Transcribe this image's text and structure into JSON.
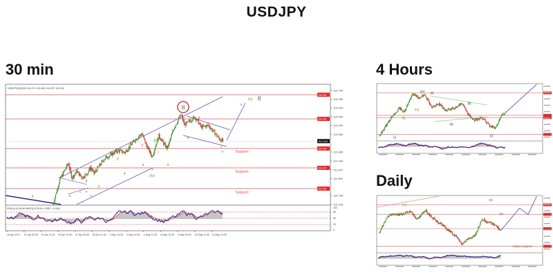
{
  "page": {
    "title": "USDJPY",
    "sections": {
      "m30": "30 min",
      "h4": "4 Hours",
      "daily": "Daily"
    }
  },
  "colors": {
    "up": "#3a9a2e",
    "down": "#c8302a",
    "level": "#d9534f",
    "channel": "#7a7acb",
    "rsi": "#1d1d9a",
    "signal": "#d9534f",
    "macd": "#b8b8b8",
    "support_text": "#d9534f",
    "green_label": "#4f9a2f"
  },
  "chart_data": [
    {
      "type": "candlestick",
      "title": "30 min",
      "header": "USDJPY(B),M30 113.271 113.362 113.257 113.342",
      "y_ticks": [
        "115.753",
        "115.340",
        "114.925",
        "114.505",
        "114.090",
        "113.660",
        "112.830",
        "112.400",
        "111.975",
        "111.560",
        "110.745",
        "110.325"
      ],
      "level_labels": [
        "115.55",
        "114.40",
        "112.99",
        "112.07",
        "111.08"
      ],
      "current_price": "113.342",
      "ylim": [
        110.325,
        115.753
      ],
      "x_ticks": [
        "19 Apr 2017",
        "21 Apr 03:30",
        "24 Apr 11:30",
        "25 Apr 19:30",
        "27 Apr 03:30",
        "28 Apr 11:30",
        "1 May 19:30",
        "3 May 03:30",
        "4 May 11:30",
        "5 May 19:30",
        "9 May 03:30",
        "10 May 11:30",
        "11 May 19:30"
      ],
      "price_path": [
        [
          27,
          110.33
        ],
        [
          31,
          111.5
        ],
        [
          36,
          112.3
        ],
        [
          38,
          111.6
        ],
        [
          41,
          111.9
        ],
        [
          44,
          111.6
        ],
        [
          47,
          111.8
        ],
        [
          49,
          112.1
        ],
        [
          51,
          111.8
        ],
        [
          57,
          112.5
        ],
        [
          61,
          112.7
        ],
        [
          65,
          112.9
        ],
        [
          69,
          112.8
        ],
        [
          75,
          113.4
        ],
        [
          79,
          113.7
        ],
        [
          82,
          113.1
        ],
        [
          85,
          112.6
        ],
        [
          89,
          113.6
        ],
        [
          92,
          113.2
        ],
        [
          94,
          113.0
        ],
        [
          98,
          114.0
        ],
        [
          102,
          114.6
        ],
        [
          104,
          114.1
        ],
        [
          110,
          114.5
        ],
        [
          114,
          114.0
        ],
        [
          118,
          114.1
        ],
        [
          122,
          113.7
        ],
        [
          125,
          113.4
        ],
        [
          127,
          113.34
        ]
      ],
      "support_labels": [
        "Support",
        "Support",
        "Support"
      ],
      "indicator_header": "RSI(14) 42.6145  MACD(12,26,9) -0.0907 -0.1044",
      "indicator_ticks": [
        "100",
        "80",
        "50",
        "20",
        "0"
      ],
      "wave_labels": [
        "3",
        "iii",
        "5",
        "b",
        "d",
        "a",
        "c",
        "e",
        "iv",
        "1",
        "2",
        "3",
        "4",
        "5",
        "v",
        "(iii)",
        "a",
        "c",
        "(iv)",
        "i",
        "ii",
        "[i]",
        "iii",
        "b",
        "a",
        "c",
        "iv",
        "v",
        "(v)",
        "[i]"
      ]
    },
    {
      "type": "candlestick",
      "title": "4 Hours",
      "price_path": [
        [
          0,
          0.02
        ],
        [
          8,
          0.45
        ],
        [
          12,
          0.6
        ],
        [
          15,
          0.52
        ],
        [
          20,
          0.9
        ],
        [
          24,
          0.82
        ],
        [
          27,
          0.88
        ],
        [
          32,
          0.62
        ],
        [
          36,
          0.7
        ],
        [
          40,
          0.55
        ],
        [
          45,
          0.6
        ],
        [
          50,
          0.7
        ],
        [
          53,
          0.5
        ],
        [
          57,
          0.35
        ],
        [
          62,
          0.4
        ],
        [
          66,
          0.25
        ],
        [
          70,
          0.18
        ],
        [
          74,
          0.45
        ],
        [
          76,
          0.5
        ]
      ],
      "projection": [
        [
          76,
          0.5
        ],
        [
          95,
          1.1
        ]
      ],
      "wave_labels": [
        "[i]",
        "[ii]",
        "[iii]",
        "[iv]",
        "[v]",
        "[a]",
        "[b]",
        "[c]"
      ]
    },
    {
      "type": "candlestick",
      "title": "Daily",
      "price_path": [
        [
          0,
          0.35
        ],
        [
          5,
          0.7
        ],
        [
          12,
          0.72
        ],
        [
          18,
          0.78
        ],
        [
          22,
          0.62
        ],
        [
          27,
          0.8
        ],
        [
          33,
          0.58
        ],
        [
          37,
          0.5
        ],
        [
          40,
          0.4
        ],
        [
          45,
          0.25
        ],
        [
          48,
          0.1
        ],
        [
          52,
          0.2
        ],
        [
          56,
          0.28
        ],
        [
          60,
          0.62
        ],
        [
          64,
          0.55
        ],
        [
          68,
          0.5
        ],
        [
          71,
          0.38
        ]
      ],
      "projection": [
        [
          71,
          0.38
        ],
        [
          82,
          0.85
        ],
        [
          87,
          0.72
        ],
        [
          92,
          1.1
        ]
      ],
      "annotations": [
        "[A]",
        "Major support",
        "(3)",
        "(4)"
      ]
    }
  ]
}
